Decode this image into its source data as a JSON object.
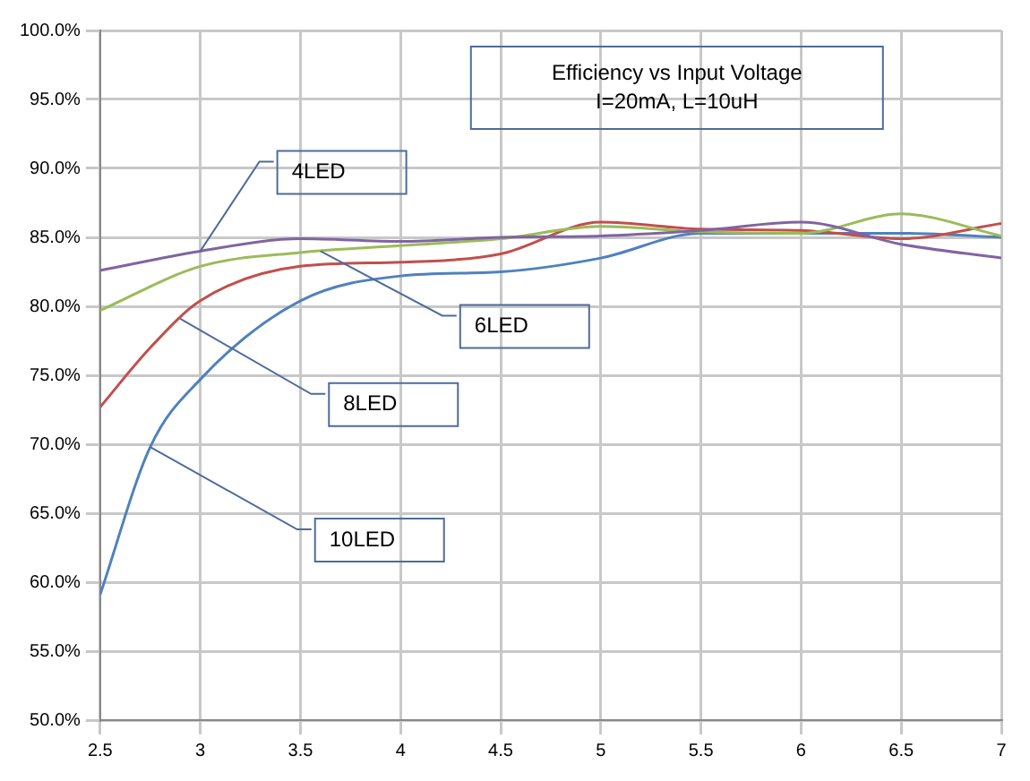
{
  "chart_data": {
    "type": "line",
    "title": "Efficiency vs Input Voltage",
    "subtitle": "I=20mA, L=10uH",
    "x": [
      2.5,
      3,
      3.5,
      4,
      4.5,
      5,
      5.5,
      6,
      6.5,
      7
    ],
    "series": [
      {
        "color": "#8064a2",
        "values": [
          82.6,
          84.0,
          84.9,
          84.7,
          85.0,
          85.1,
          85.5,
          86.1,
          84.5,
          83.5
        ]
      },
      {
        "color": "#9bbb59",
        "values": [
          79.7,
          82.9,
          83.9,
          84.4,
          84.9,
          85.8,
          85.4,
          85.3,
          86.7,
          85.1
        ]
      },
      {
        "color": "#c0504d",
        "x": [
          2.5,
          2.75,
          3,
          3.5,
          4,
          4.5,
          5,
          5.5,
          6,
          6.5,
          7
        ],
        "values": [
          72.7,
          77.0,
          80.4,
          82.9,
          83.2,
          83.8,
          86.1,
          85.6,
          85.5,
          84.9,
          86.0
        ]
      },
      {
        "color": "#4f81bd",
        "x": [
          2.5,
          2.75,
          3,
          3.5,
          4,
          4.5,
          5,
          5.5,
          6,
          6.5,
          7
        ],
        "values": [
          59.1,
          69.8,
          74.7,
          80.4,
          82.2,
          82.5,
          83.5,
          85.3,
          85.3,
          85.3,
          85.0
        ]
      }
    ],
    "annotations": [
      {
        "text": "4LED",
        "x": 3,
        "y": 84.0
      },
      {
        "text": "6LED",
        "x": 3.6,
        "y": 84.0
      },
      {
        "text": "8LED",
        "x": 2.9,
        "y": 79.1
      },
      {
        "text": "10LED",
        "x": 2.75,
        "y": 69.8
      }
    ],
    "xlim": [
      2.5,
      7
    ],
    "xticks": [
      2.5,
      3,
      3.5,
      4,
      4.5,
      5,
      5.5,
      6,
      6.5,
      7
    ],
    "ylim": [
      50,
      100
    ],
    "yticks": [
      {
        "value": 50,
        "label": "50.0%"
      },
      {
        "value": 55,
        "label": "55.0%"
      },
      {
        "value": 60,
        "label": "60.0%"
      },
      {
        "value": 65,
        "label": "65.0%"
      },
      {
        "value": 70,
        "label": "70.0%"
      },
      {
        "value": 75,
        "label": "75.0%"
      },
      {
        "value": 80,
        "label": "80.0%"
      },
      {
        "value": 85,
        "label": "85.0%"
      },
      {
        "value": 90,
        "label": "90.0%"
      },
      {
        "value": 95,
        "label": "95.0%"
      },
      {
        "value": 100,
        "label": "100.0%"
      }
    ],
    "grid": true,
    "legend": false,
    "marker": "none",
    "line_style": "solid"
  }
}
